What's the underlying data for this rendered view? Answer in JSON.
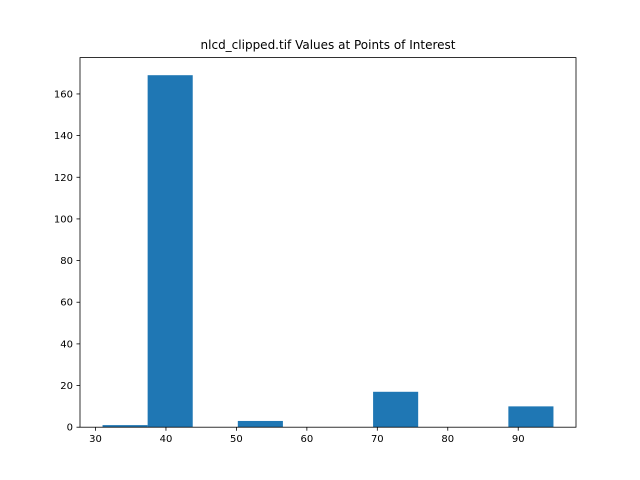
{
  "chart_data": {
    "type": "bar",
    "title": "nlcd_clipped.tif Values at Points of Interest",
    "xlabel": "",
    "ylabel": "",
    "bars": [
      {
        "x0": 31.0,
        "x1": 37.4,
        "value": 1
      },
      {
        "x0": 37.4,
        "x1": 43.8,
        "value": 169
      },
      {
        "x0": 43.8,
        "x1": 50.2,
        "value": 0
      },
      {
        "x0": 50.2,
        "x1": 56.6,
        "value": 3
      },
      {
        "x0": 56.6,
        "x1": 63.0,
        "value": 0
      },
      {
        "x0": 63.0,
        "x1": 69.4,
        "value": 0
      },
      {
        "x0": 69.4,
        "x1": 75.8,
        "value": 17
      },
      {
        "x0": 75.8,
        "x1": 82.2,
        "value": 0
      },
      {
        "x0": 82.2,
        "x1": 88.6,
        "value": 0
      },
      {
        "x0": 88.6,
        "x1": 95.0,
        "value": 10
      }
    ],
    "xlim": [
      27.8,
      98.2
    ],
    "ylim": [
      0,
      177.45
    ],
    "xticks": [
      30,
      40,
      50,
      60,
      70,
      80,
      90
    ],
    "yticks": [
      0,
      20,
      40,
      60,
      80,
      100,
      120,
      140,
      160
    ],
    "bar_color": "#1f77b4",
    "grid": false
  }
}
